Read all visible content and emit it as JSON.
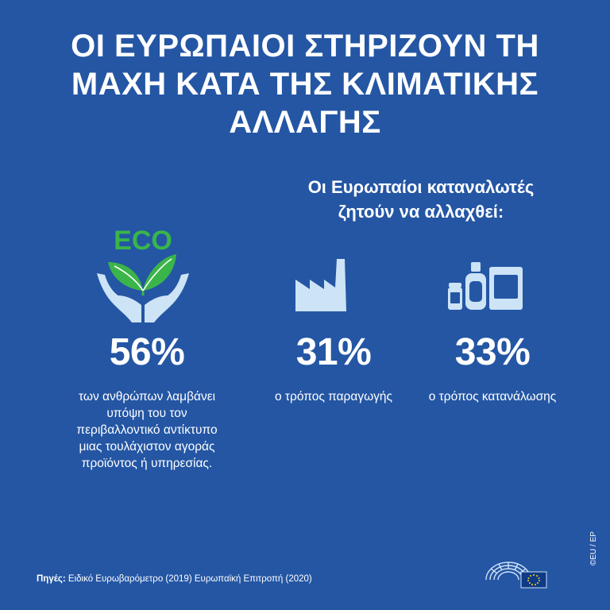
{
  "title": {
    "line1": "ΟΙ ΕΥΡΩΠΑΙΟΙ ΣΤΗΡΙΖΟΥΝ ΤΗ",
    "line2": "ΜΑΧΗ ΚΑΤΑ ΤΗΣ ΚΛΙΜΑΤΙΚΗΣ",
    "line3": "ΑΛΛΑΓΗΣ"
  },
  "consumers": {
    "heading_line1": "Οι Ευρωπαίοι καταναλωτές",
    "heading_line2": "ζητούν να αλλαχθεί:"
  },
  "eco_label": "ECO",
  "stats": [
    {
      "value": "56%",
      "icon": "eco-hands-icon",
      "desc_lines": [
        "των ανθρώπων λαμβάνει",
        "υπόψη του τον",
        "περιβαλλοντικό αντίκτυπο",
        "μιας τουλάχιστον αγοράς",
        "προϊόντος ή υπηρεσίας."
      ]
    },
    {
      "value": "31%",
      "icon": "factory-icon",
      "desc_lines": [
        "ο τρόπος παραγωγής"
      ]
    },
    {
      "value": "33%",
      "icon": "products-icon",
      "desc_lines": [
        "ο τρόπος κατανάλωσης"
      ]
    }
  ],
  "footer": {
    "sources_label": "Πηγές:",
    "sources_text": " Ειδικό Ευρωβαρόμετρο (2019) Ευρωπαϊκή Επιτροπή (2020)",
    "credit": "©EU / EP"
  },
  "colors": {
    "background": "#2456a4",
    "eco_green": "#3bb54a",
    "icon_light": "#cde3f6",
    "text": "#ffffff"
  }
}
